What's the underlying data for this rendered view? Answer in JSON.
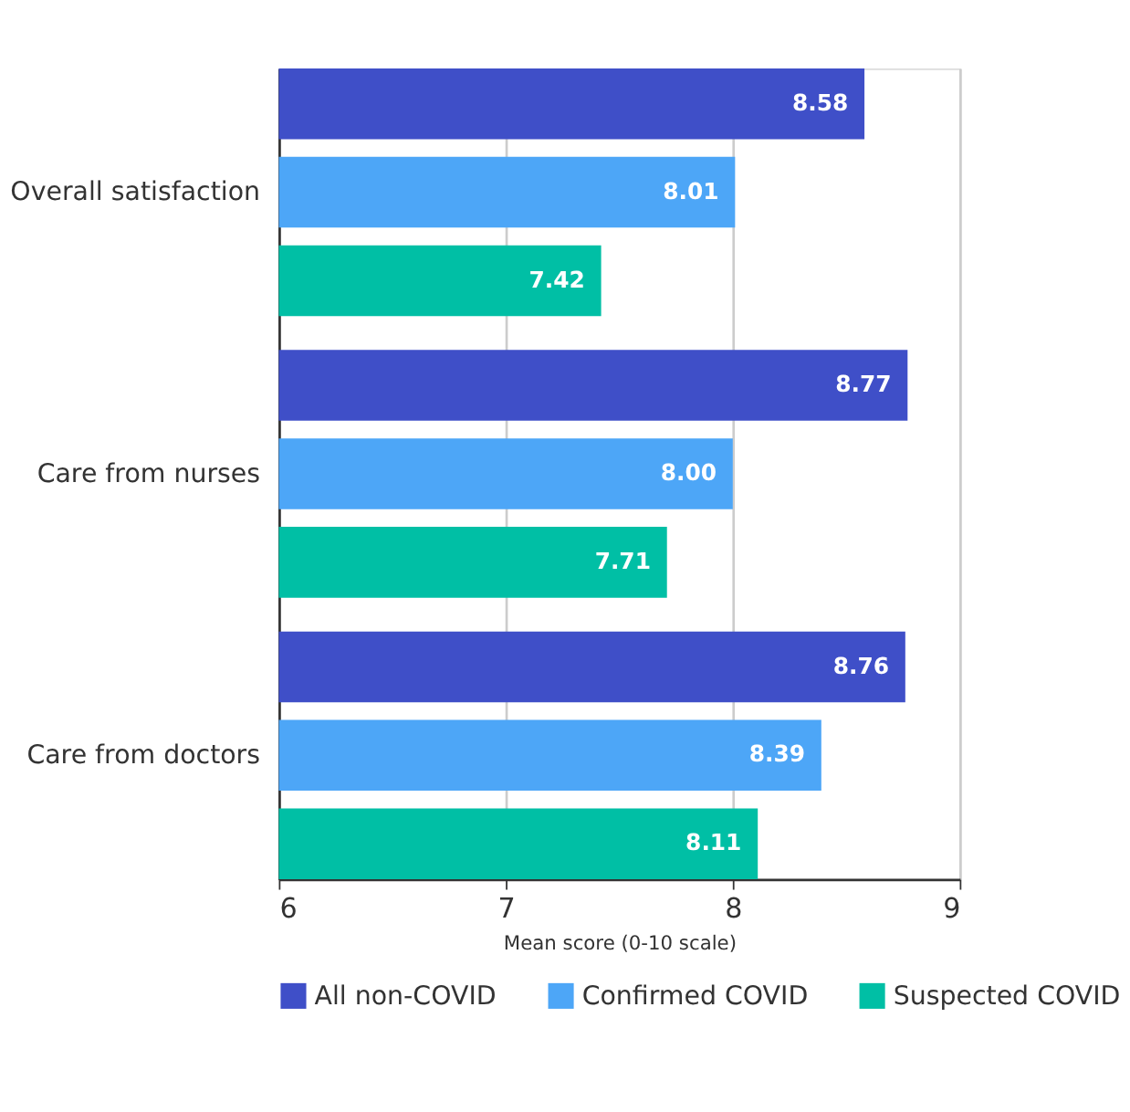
{
  "chart_data": {
    "type": "bar",
    "orientation": "horizontal",
    "xlabel": "Mean score (0-10 scale)",
    "categories": [
      "Overall satisfaction",
      "Care from nurses",
      "Care from doctors"
    ],
    "series": [
      {
        "name": "All non-COVID",
        "color": "#3f4fc8",
        "values": [
          8.58,
          8.77,
          8.76
        ]
      },
      {
        "name": "Confirmed COVID",
        "color": "#4da6f7",
        "values": [
          8.01,
          8.0,
          8.39
        ]
      },
      {
        "name": "Suspected COVID",
        "color": "#00bfa5",
        "values": [
          7.42,
          7.71,
          8.11
        ]
      }
    ],
    "xlim": [
      6,
      9
    ],
    "xticks": [
      6,
      7,
      8,
      9
    ],
    "grid": "x",
    "legend": "bottom",
    "value_labels": [
      [
        "8.58",
        "8.77",
        "8.76"
      ],
      [
        "8.01",
        "8.00",
        "8.39"
      ],
      [
        "7.42",
        "7.71",
        "8.11"
      ]
    ]
  }
}
